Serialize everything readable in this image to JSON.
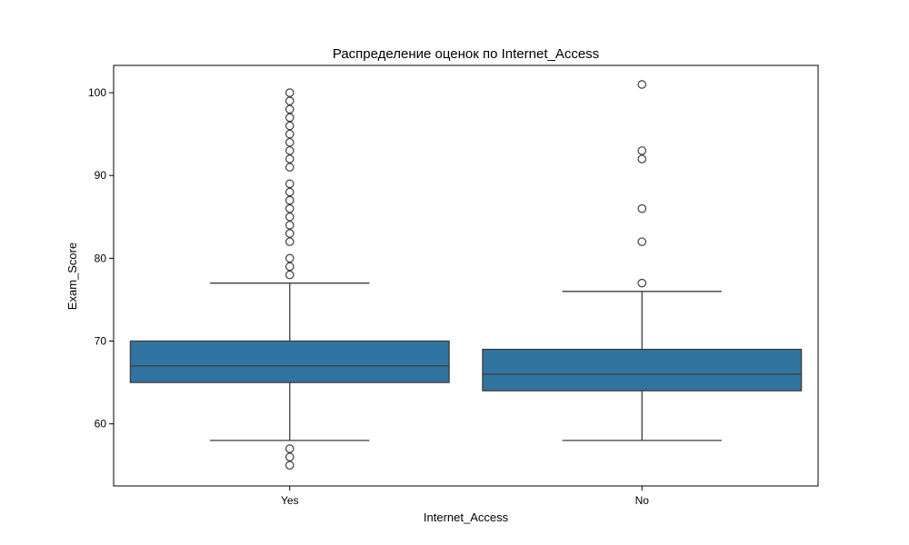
{
  "chart_data": {
    "type": "box",
    "title": "Распределение оценок по Internet_Access",
    "xlabel": "Internet_Access",
    "ylabel": "Exam_Score",
    "ylim": [
      52.5,
      103.3
    ],
    "yticks": [
      60,
      70,
      80,
      90,
      100
    ],
    "grid": false,
    "box_color": "#3274a1",
    "line_color": "#3d3d3d",
    "categories": [
      "Yes",
      "No"
    ],
    "boxes": [
      {
        "category": "Yes",
        "whisker_low": 58,
        "q1": 65,
        "median": 67,
        "q3": 70,
        "whisker_high": 77,
        "outliers": [
          55,
          56,
          57,
          78,
          79,
          80,
          82,
          83,
          84,
          85,
          86,
          87,
          88,
          89,
          91,
          92,
          93,
          94,
          95,
          96,
          97,
          98,
          99,
          100
        ]
      },
      {
        "category": "No",
        "whisker_low": 58,
        "q1": 64,
        "median": 66,
        "q3": 69,
        "whisker_high": 76,
        "outliers": [
          77,
          82,
          86,
          92,
          93,
          101
        ]
      }
    ]
  }
}
